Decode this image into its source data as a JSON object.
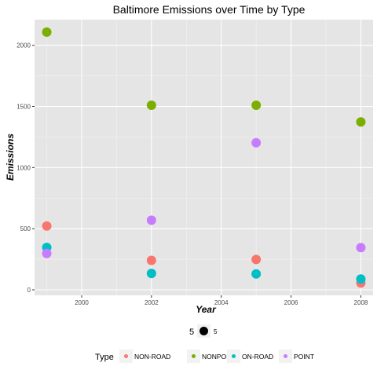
{
  "chart_data": {
    "type": "scatter",
    "title": "Baltimore Emissions over Time by Type",
    "xlabel": "Year",
    "ylabel": "Emissions",
    "xlim": [
      1998.65,
      2008.35
    ],
    "ylim": [
      -45,
      2210
    ],
    "x_ticks": [
      2000,
      2002,
      2004,
      2006,
      2008
    ],
    "y_ticks": [
      0,
      500,
      1000,
      1500,
      2000
    ],
    "grid": true,
    "panel_background": "#e5e5e5",
    "size_legend": {
      "label": "5",
      "value_label": "5"
    },
    "legend_title": "Type",
    "legend_position": "bottom",
    "series": [
      {
        "name": "NON-ROAD",
        "color": "#F8766D",
        "x": [
          1999,
          2002,
          2005,
          2008
        ],
        "y": [
          522,
          241,
          248,
          55
        ]
      },
      {
        "name": "NONPOINT",
        "color": "#7CAE00",
        "x": [
          1999,
          2002,
          2005,
          2008
        ],
        "y": [
          2108,
          1510,
          1510,
          1373
        ]
      },
      {
        "name": "ON-ROAD",
        "color": "#00BFC4",
        "x": [
          1999,
          2002,
          2005,
          2008
        ],
        "y": [
          347,
          134,
          130,
          88
        ]
      },
      {
        "name": "POINT",
        "color": "#C77CFF",
        "x": [
          1999,
          2002,
          2005,
          2008
        ],
        "y": [
          297,
          569,
          1203,
          345
        ]
      }
    ]
  }
}
